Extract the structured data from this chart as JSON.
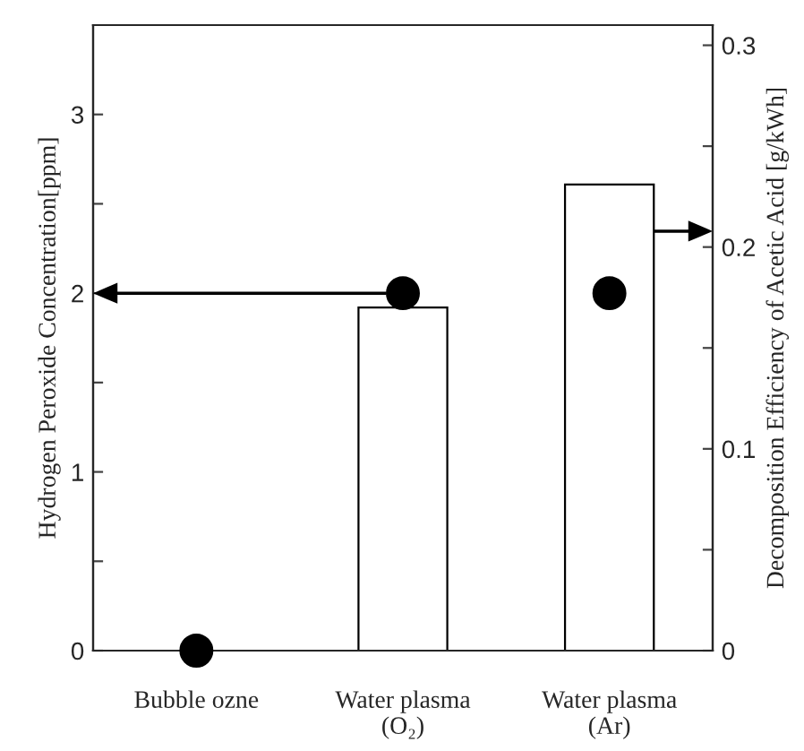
{
  "chart_data": {
    "type": "bar",
    "categories": [
      "Bubble ozne",
      "Water plasma\n(O₂)",
      "Water plasma\n(Ar)"
    ],
    "ylabel": "Hydrogen Peroxide Concentration[ppm]",
    "y2label": "Decomposition Efficiency of Acetic Acid [g/kWh]",
    "series": [
      {
        "type": "bar",
        "axis": "y2",
        "color": "#ffffff",
        "values": [
          null,
          0.17,
          0.231
        ]
      },
      {
        "type": "scatter",
        "axis": "y",
        "color": "#000000",
        "marker": "circle",
        "values": [
          0,
          2.0,
          2.0
        ]
      }
    ],
    "ylim": [
      0,
      3.5
    ],
    "yticks": [
      0,
      {
        "value": 0.5,
        "label": null
      },
      1,
      {
        "value": 1.5,
        "label": null
      },
      2,
      {
        "value": 2.5,
        "label": null
      },
      3
    ],
    "y2lim": [
      0,
      0.31
    ],
    "y2ticks": [
      0,
      {
        "value": 0.05,
        "label": null
      },
      0.1,
      {
        "value": 0.15,
        "label": null
      },
      0.2,
      {
        "value": 0.25,
        "label": null
      },
      0.3
    ],
    "grid": false,
    "legend": false
  }
}
